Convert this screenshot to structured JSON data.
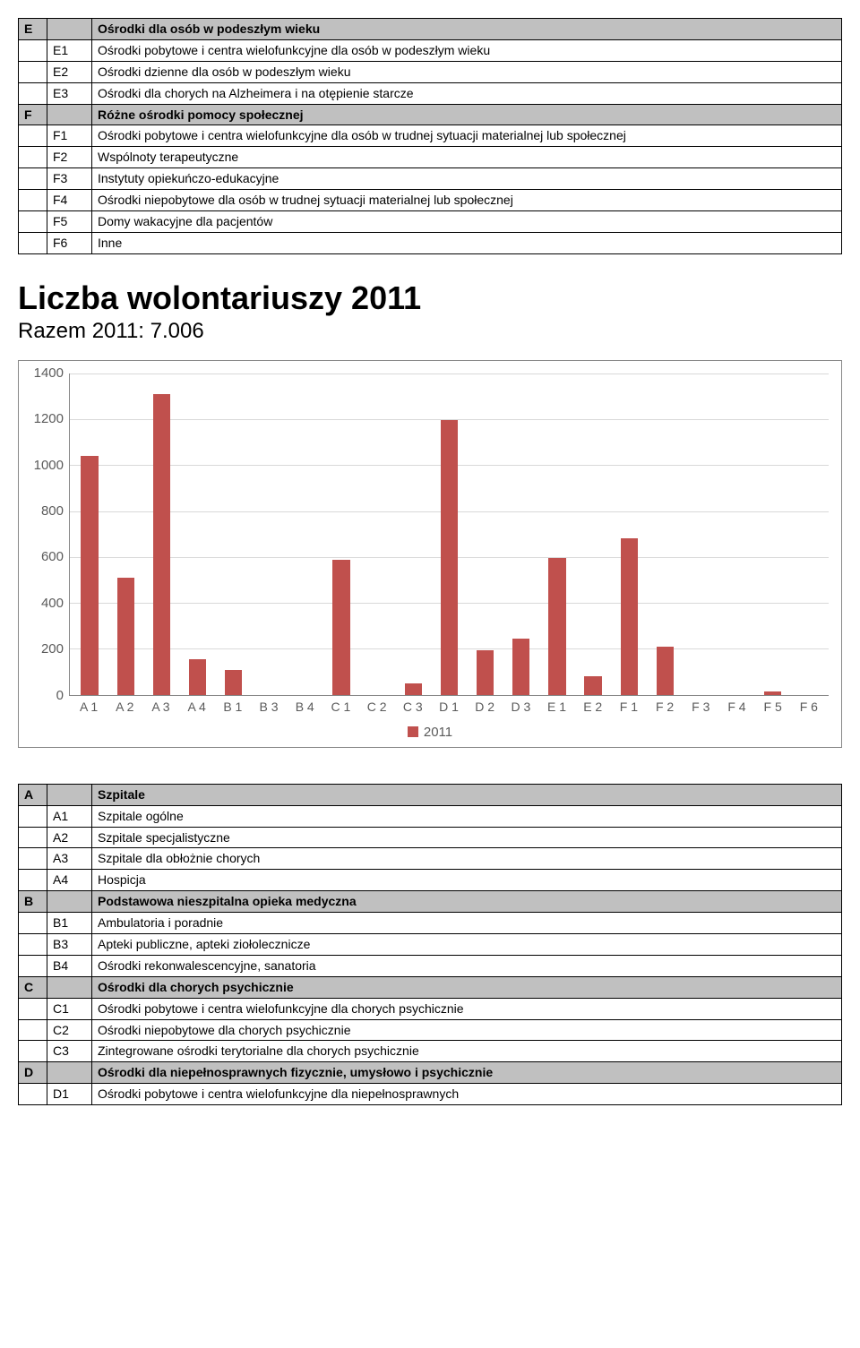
{
  "table1": {
    "rows": [
      {
        "letter": "E",
        "code": "",
        "text": "Ośrodki dla osób w podeszłym wieku",
        "header": true
      },
      {
        "letter": "",
        "code": "E1",
        "text": "Ośrodki pobytowe i centra wielofunkcyjne dla osób w podeszłym wieku",
        "header": false
      },
      {
        "letter": "",
        "code": "E2",
        "text": "Ośrodki dzienne dla osób w podeszłym wieku",
        "header": false
      },
      {
        "letter": "",
        "code": "E3",
        "text": "Ośrodki dla chorych na Alzheimera i na otępienie starcze",
        "header": false
      },
      {
        "letter": "F",
        "code": "",
        "text": "Różne ośrodki pomocy społecznej",
        "header": true
      },
      {
        "letter": "",
        "code": "F1",
        "text": "Ośrodki pobytowe i centra wielofunkcyjne dla osób w trudnej sytuacji materialnej lub społecznej",
        "header": false
      },
      {
        "letter": "",
        "code": "F2",
        "text": "Wspólnoty terapeutyczne",
        "header": false
      },
      {
        "letter": "",
        "code": "F3",
        "text": "Instytuty opiekuńczo-edukacyjne",
        "header": false
      },
      {
        "letter": "",
        "code": "F4",
        "text": "Ośrodki niepobytowe dla osób w trudnej sytuacji materialnej lub społecznej",
        "header": false
      },
      {
        "letter": "",
        "code": "F5",
        "text": "Domy wakacyjne dla pacjentów",
        "header": false
      },
      {
        "letter": "",
        "code": "F6",
        "text": "Inne",
        "header": false
      }
    ]
  },
  "chart": {
    "title": "Liczba wolontariuszy 2011",
    "subtitle": "Razem 2011: 7.006",
    "type": "bar",
    "legend_label": "2011",
    "bar_color": "#c0504d",
    "grid_color": "#d9d9d9",
    "axis_color": "#888888",
    "text_color": "#5a5a5a",
    "background_color": "#ffffff",
    "y_max": 1400,
    "y_ticks": [
      1400,
      1200,
      1000,
      800,
      600,
      400,
      200,
      0
    ],
    "categories": [
      "A 1",
      "A 2",
      "A 3",
      "A 4",
      "B 1",
      "B 3",
      "B 4",
      "C 1",
      "C 2",
      "C 3",
      "D 1",
      "D 2",
      "D 3",
      "E 1",
      "E 2",
      "F 1",
      "F 2",
      "F 3",
      "F 4",
      "F 5",
      "F 6"
    ],
    "values": [
      1040,
      510,
      1310,
      155,
      110,
      0,
      0,
      590,
      0,
      50,
      1195,
      195,
      245,
      595,
      80,
      680,
      210,
      0,
      0,
      15,
      0
    ]
  },
  "table2": {
    "rows": [
      {
        "letter": "A",
        "code": "",
        "text": "Szpitale",
        "header": true
      },
      {
        "letter": "",
        "code": "A1",
        "text": "Szpitale ogólne",
        "header": false
      },
      {
        "letter": "",
        "code": "A2",
        "text": "Szpitale specjalistyczne",
        "header": false
      },
      {
        "letter": "",
        "code": "A3",
        "text": "Szpitale dla obłożnie chorych",
        "header": false
      },
      {
        "letter": "",
        "code": "A4",
        "text": "Hospicja",
        "header": false
      },
      {
        "letter": "B",
        "code": "",
        "text": "Podstawowa nieszpitalna opieka medyczna",
        "header": true
      },
      {
        "letter": "",
        "code": "B1",
        "text": "Ambulatoria i poradnie",
        "header": false
      },
      {
        "letter": "",
        "code": "B3",
        "text": "Apteki publiczne, apteki ziołolecznicze",
        "header": false
      },
      {
        "letter": "",
        "code": "B4",
        "text": "Ośrodki rekonwalescencyjne, sanatoria",
        "header": false
      },
      {
        "letter": "C",
        "code": "",
        "text": "Ośrodki dla chorych psychicznie",
        "header": true
      },
      {
        "letter": "",
        "code": "C1",
        "text": "Ośrodki pobytowe i centra wielofunkcyjne dla chorych psychicznie",
        "header": false
      },
      {
        "letter": "",
        "code": "C2",
        "text": "Ośrodki niepobytowe dla chorych psychicznie",
        "header": false
      },
      {
        "letter": "",
        "code": "C3",
        "text": "Zintegrowane ośrodki terytorialne dla chorych psychicznie",
        "header": false
      },
      {
        "letter": "D",
        "code": "",
        "text": "Ośrodki dla niepełnosprawnych fizycznie, umysłowo i psychicznie",
        "header": true
      },
      {
        "letter": "",
        "code": "D1",
        "text": "Ośrodki pobytowe i centra wielofunkcyjne dla niepełnosprawnych",
        "header": false
      }
    ]
  }
}
